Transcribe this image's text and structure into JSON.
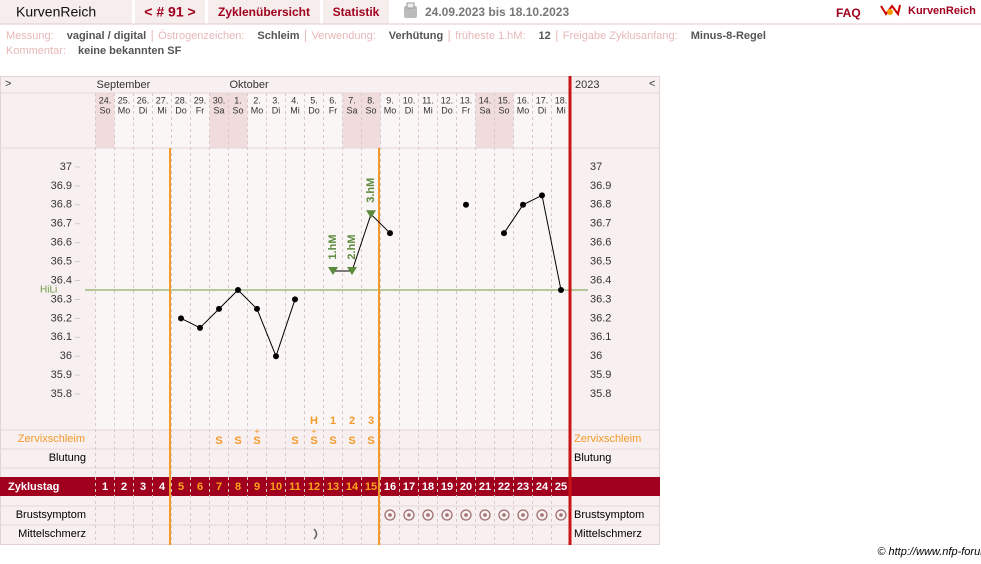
{
  "header": {
    "brand": "KurvenReich",
    "cycle": "< # 91 >",
    "tabs": [
      "Zyklenübersicht",
      "Statistik"
    ],
    "period": "24.09.2023 bis 18.10.2023",
    "faq": "FAQ",
    "logo": "KurvenReich"
  },
  "info": {
    "items": [
      {
        "label": "Messung:",
        "value": "vaginal / digital"
      },
      {
        "label": "Östrogenzeichen:",
        "value": "Schleim"
      },
      {
        "label": "Verwendung:",
        "value": "Verhütung"
      },
      {
        "label": "früheste 1.hM:",
        "value": "12"
      },
      {
        "label": "Freigabe Zyklusanfang:",
        "value": "Minus-8-Regel"
      }
    ],
    "comment_label": "Kommentar:",
    "comment": "keine bekannten SF"
  },
  "chart_data": {
    "type": "line",
    "nav_left": ">",
    "nav_right": "<",
    "months": [
      "September",
      "Oktober"
    ],
    "year": "2023",
    "dates": [
      "24.",
      "25.",
      "26.",
      "27.",
      "28.",
      "29.",
      "30.",
      "1.",
      "2.",
      "3.",
      "4.",
      "5.",
      "6.",
      "7.",
      "8.",
      "9.",
      "10.",
      "11.",
      "12.",
      "13.",
      "14.",
      "15.",
      "16.",
      "17.",
      "18."
    ],
    "weekdays": [
      "So",
      "Mo",
      "Di",
      "Mi",
      "Do",
      "Fr",
      "Sa",
      "So",
      "Mo",
      "Di",
      "Mi",
      "Do",
      "Fr",
      "Sa",
      "So",
      "Mo",
      "Di",
      "Mi",
      "Do",
      "Fr",
      "Sa",
      "So",
      "Mo",
      "Di",
      "Mi"
    ],
    "cycle_days": [
      1,
      2,
      3,
      4,
      5,
      6,
      7,
      8,
      9,
      10,
      11,
      12,
      13,
      14,
      15,
      16,
      17,
      18,
      19,
      20,
      21,
      22,
      23,
      24,
      25
    ],
    "ylim": [
      35.7,
      37.1
    ],
    "yticks": [
      35.8,
      35.9,
      36,
      36.1,
      36.2,
      36.3,
      36.4,
      36.5,
      36.6,
      36.7,
      36.8,
      36.9,
      37
    ],
    "values": [
      null,
      null,
      null,
      null,
      36.2,
      36.15,
      36.25,
      36.35,
      36.25,
      36.0,
      36.3,
      null,
      36.45,
      36.45,
      36.75,
      36.65,
      null,
      null,
      null,
      36.8,
      null,
      36.65,
      36.8,
      36.85,
      36.35
    ],
    "color": "#000000",
    "hm_labels": [
      null,
      null,
      null,
      null,
      null,
      null,
      null,
      null,
      null,
      null,
      null,
      null,
      "1.hM",
      "2.hM",
      "3.hM",
      null,
      null,
      null,
      null,
      null,
      null,
      null,
      null,
      null,
      null
    ],
    "hm_color": "#5b8a3c",
    "coverline": {
      "label": "HiLi",
      "value": 36.35,
      "color": "#6f9a45"
    },
    "mucus_markers": [
      null,
      null,
      null,
      null,
      null,
      null,
      null,
      null,
      null,
      null,
      null,
      "H",
      "1",
      "2",
      "3",
      null,
      null,
      null,
      null,
      null,
      null,
      null,
      null,
      null,
      null
    ],
    "mucus": [
      null,
      null,
      null,
      null,
      null,
      null,
      "S",
      "S",
      "S",
      null,
      "S",
      "S",
      "S",
      "S",
      "S",
      null,
      null,
      null,
      null,
      null,
      null,
      null,
      null,
      null,
      null
    ],
    "mucus_plus": [
      null,
      null,
      null,
      null,
      null,
      null,
      null,
      null,
      "+",
      null,
      null,
      "+",
      null,
      null,
      null,
      null,
      null,
      null,
      null,
      null,
      null,
      null,
      null,
      null,
      null
    ],
    "rows": {
      "mucus": "Zervixschleim",
      "bleeding": "Blutung",
      "cycle_day": "Zyklustag",
      "breast": "Brustsymptom",
      "pain": "Mittelschmerz"
    }
  },
  "footer": "© http://www.nfp-forum.de"
}
